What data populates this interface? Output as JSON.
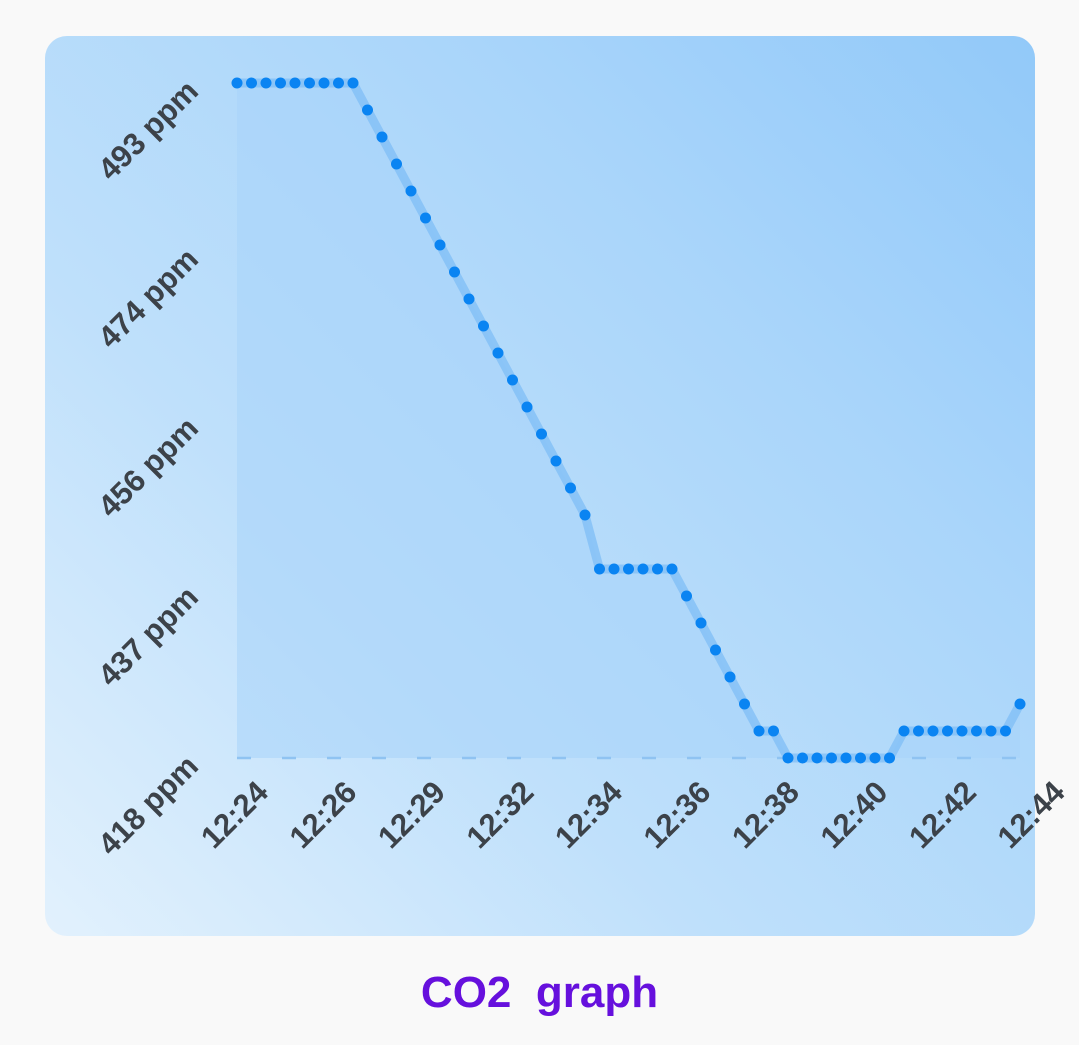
{
  "caption": "CO2  graph",
  "colors": {
    "line": "#0a84f2",
    "area": "#a8d4fa",
    "axis_text": "#3c4249",
    "caption": "#6610dd"
  },
  "chart_data": {
    "type": "line",
    "title": "",
    "xlabel": "",
    "ylabel": "",
    "ylim": [
      418,
      493
    ],
    "y_ticks": [
      "418 ppm",
      "437 ppm",
      "456 ppm",
      "474 ppm",
      "493 ppm"
    ],
    "x_ticks": [
      "12:24",
      "12:26",
      "12:29",
      "12:32",
      "12:34",
      "12:36",
      "12:38",
      "12:40",
      "12:42",
      "12:44"
    ],
    "grid": false,
    "area_fill": true,
    "markers": true,
    "series": [
      {
        "values": [
          493,
          493,
          493,
          493,
          493,
          493,
          493,
          493,
          493,
          490,
          487,
          484,
          481,
          478,
          475,
          472,
          469,
          466,
          463,
          460,
          457,
          454,
          451,
          448,
          445,
          439,
          439,
          439,
          439,
          439,
          439,
          436,
          433,
          430,
          427,
          424,
          421,
          421,
          418,
          418,
          418,
          418,
          418,
          418,
          418,
          418,
          421,
          421,
          421,
          421,
          421,
          421,
          421,
          421,
          424
        ]
      }
    ]
  }
}
